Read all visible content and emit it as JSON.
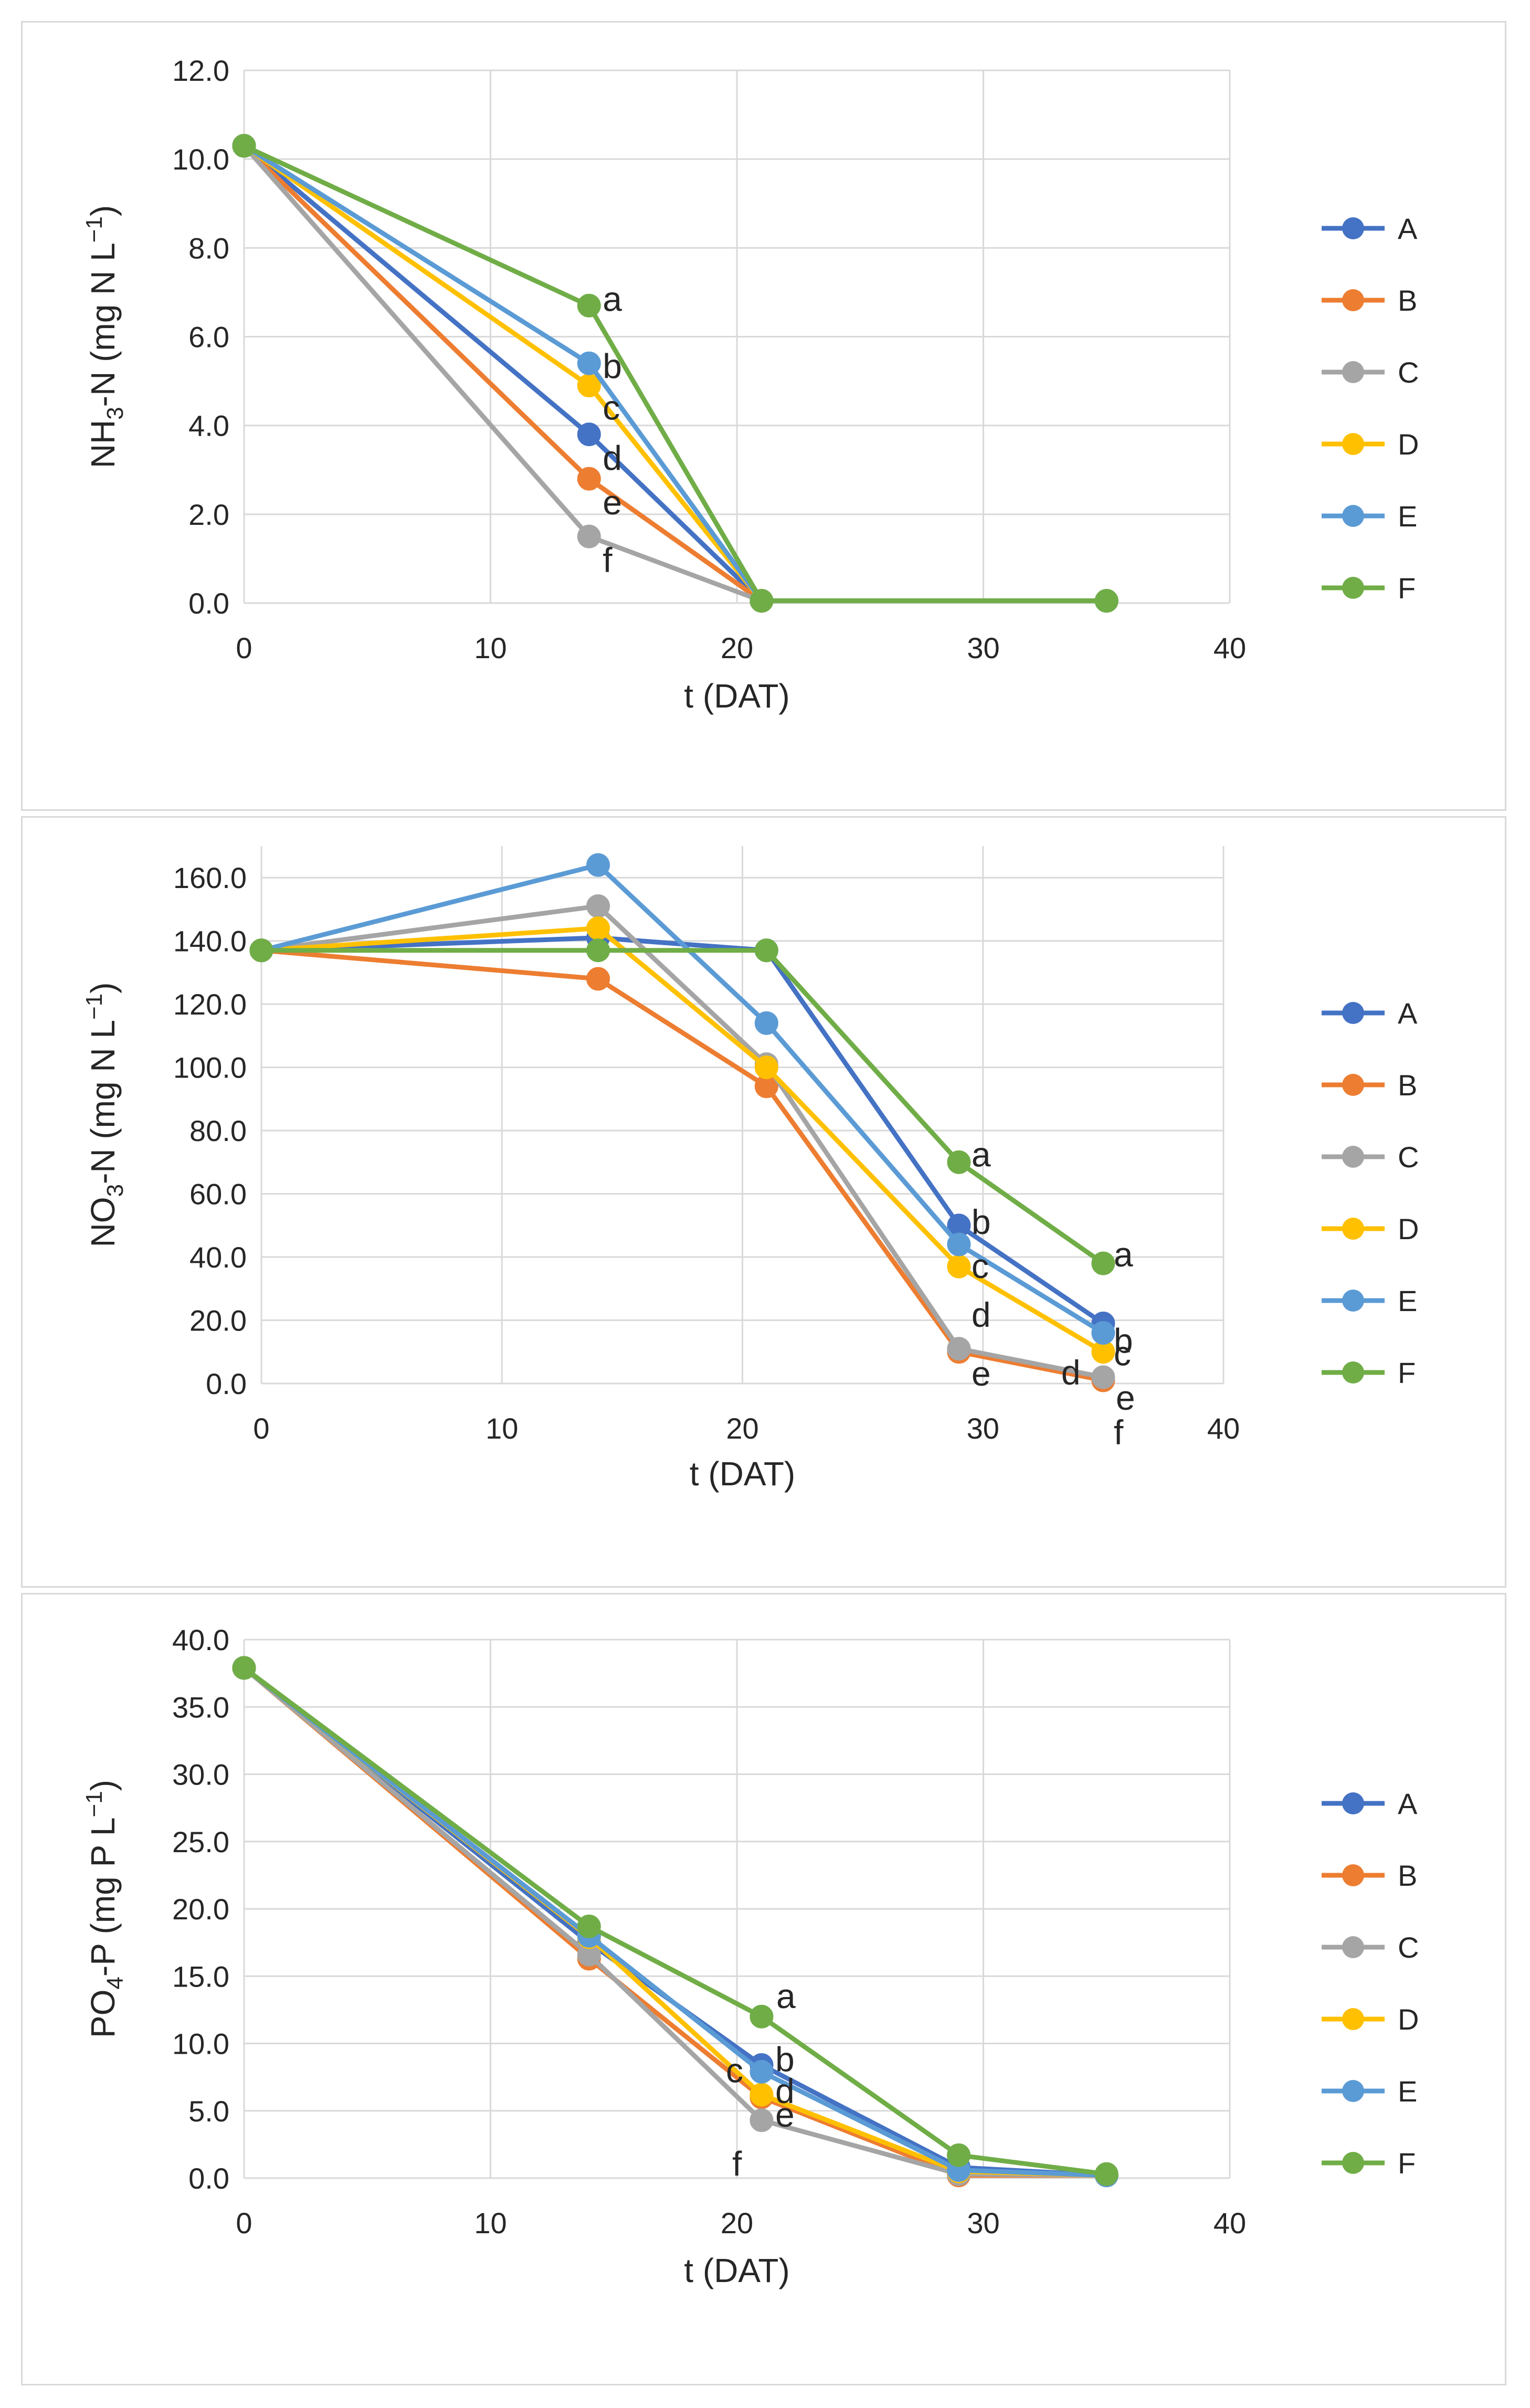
{
  "colors": {
    "A": "#4472c4",
    "B": "#ed7d31",
    "C": "#a5a5a5",
    "D": "#ffc000",
    "E": "#5b9bd5",
    "F": "#70ad47",
    "grid": "#d9d9d9",
    "text": "#262626"
  },
  "chart_data": [
    {
      "type": "line",
      "ylabel_main": "NH",
      "ylabel_sub": "3",
      "ylabel_rest": "-N (mg N L",
      "ylabel_sup": "−1",
      "ylabel_end": ")",
      "xlabel": "t (DAT)",
      "xlim": [
        0,
        40
      ],
      "ylim": [
        0,
        12
      ],
      "xticks": [
        0,
        10,
        20,
        30,
        40
      ],
      "xtick_labels": [
        "0",
        "10",
        "20",
        "30",
        "40"
      ],
      "yticks": [
        0,
        2,
        4,
        6,
        8,
        10,
        12
      ],
      "ytick_labels": [
        "0.0",
        "2.0",
        "4.0",
        "6.0",
        "8.0",
        "10.0",
        "12.0"
      ],
      "legend": [
        "A",
        "B",
        "C",
        "D",
        "E",
        "F"
      ],
      "series": [
        {
          "name": "A",
          "points": [
            [
              0,
              10.3
            ],
            [
              14,
              3.8
            ],
            [
              21,
              0.05
            ],
            [
              35,
              0.05
            ]
          ]
        },
        {
          "name": "B",
          "points": [
            [
              0,
              10.3
            ],
            [
              14,
              2.8
            ],
            [
              21,
              0.05
            ],
            [
              35,
              0.05
            ]
          ]
        },
        {
          "name": "C",
          "points": [
            [
              0,
              10.3
            ],
            [
              14,
              1.5
            ],
            [
              21,
              0.05
            ],
            [
              35,
              0.05
            ]
          ]
        },
        {
          "name": "D",
          "points": [
            [
              0,
              10.3
            ],
            [
              14,
              4.9
            ],
            [
              21,
              0.05
            ],
            [
              35,
              0.05
            ]
          ]
        },
        {
          "name": "E",
          "points": [
            [
              0,
              10.3
            ],
            [
              14,
              5.4
            ],
            [
              21,
              0.05
            ],
            [
              35,
              0.05
            ]
          ]
        },
        {
          "name": "F",
          "points": [
            [
              0,
              10.3
            ],
            [
              14,
              6.7
            ],
            [
              21,
              0.05
            ],
            [
              35,
              0.05
            ]
          ]
        }
      ],
      "annotations": [
        {
          "text": "a",
          "x": 14,
          "y": 6.7
        },
        {
          "text": "b",
          "x": 14,
          "y": 5.4
        },
        {
          "text": "c",
          "x": 14,
          "y": 4.9
        },
        {
          "text": "d",
          "x": 14,
          "y": 3.8
        },
        {
          "text": "e",
          "x": 14,
          "y": 2.8
        },
        {
          "text": "f",
          "x": 14,
          "y": 1.5
        }
      ]
    },
    {
      "type": "line",
      "ylabel_main": "NO",
      "ylabel_sub": "3",
      "ylabel_rest": "-N (mg N L",
      "ylabel_sup": "−1",
      "ylabel_end": ")",
      "xlabel": "t (DAT)",
      "xlim": [
        0,
        40
      ],
      "ylim": [
        0,
        170
      ],
      "xticks": [
        0,
        10,
        20,
        30,
        40
      ],
      "xtick_labels": [
        "0",
        "10",
        "20",
        "30",
        "40"
      ],
      "yticks": [
        0,
        20,
        40,
        60,
        80,
        100,
        120,
        140,
        160
      ],
      "ytick_labels": [
        "0.0",
        "20.0",
        "40.0",
        "60.0",
        "80.0",
        "100.0",
        "120.0",
        "140.0",
        "160.0"
      ],
      "legend": [
        "A",
        "B",
        "C",
        "D",
        "E",
        "F"
      ],
      "series": [
        {
          "name": "A",
          "points": [
            [
              0,
              137
            ],
            [
              14,
              141
            ],
            [
              21,
              137
            ],
            [
              29,
              50
            ],
            [
              35,
              19
            ]
          ]
        },
        {
          "name": "B",
          "points": [
            [
              0,
              137
            ],
            [
              14,
              128
            ],
            [
              21,
              94
            ],
            [
              29,
              10
            ],
            [
              35,
              1
            ]
          ]
        },
        {
          "name": "C",
          "points": [
            [
              0,
              137
            ],
            [
              14,
              151
            ],
            [
              21,
              101
            ],
            [
              29,
              11
            ],
            [
              35,
              2
            ]
          ]
        },
        {
          "name": "D",
          "points": [
            [
              0,
              137
            ],
            [
              14,
              144
            ],
            [
              21,
              100
            ],
            [
              29,
              37
            ],
            [
              35,
              10
            ]
          ]
        },
        {
          "name": "E",
          "points": [
            [
              0,
              137
            ],
            [
              14,
              164
            ],
            [
              21,
              114
            ],
            [
              29,
              44
            ],
            [
              35,
              16
            ]
          ]
        },
        {
          "name": "F",
          "points": [
            [
              0,
              137
            ],
            [
              14,
              137
            ],
            [
              21,
              137
            ],
            [
              29,
              70
            ],
            [
              35,
              38
            ]
          ]
        }
      ],
      "annotations": [
        {
          "text": "a",
          "x": 29,
          "y": 70
        },
        {
          "text": "b",
          "x": 29,
          "y": 50
        },
        {
          "text": "c",
          "x": 29,
          "y": 44
        },
        {
          "text": "d",
          "x": 29,
          "y": 37
        },
        {
          "text": "e",
          "x": 29,
          "y": 10
        },
        {
          "text": "a",
          "x": 35,
          "y": 38
        },
        {
          "text": "b",
          "x": 35,
          "y": 19
        },
        {
          "text": "c",
          "x": 35,
          "y": 16
        },
        {
          "text": "d",
          "x": 35,
          "y": 10
        },
        {
          "text": "e",
          "x": 35,
          "y": 2
        },
        {
          "text": "f",
          "x": 35,
          "y": 1
        }
      ]
    },
    {
      "type": "line",
      "ylabel_main": "PO",
      "ylabel_sub": "4",
      "ylabel_rest": "-P (mg P L",
      "ylabel_sup": "−1",
      "ylabel_end": ")",
      "xlabel": "t (DAT)",
      "xlim": [
        0,
        40
      ],
      "ylim": [
        0,
        40
      ],
      "xticks": [
        0,
        10,
        20,
        30,
        40
      ],
      "xtick_labels": [
        "0",
        "10",
        "20",
        "30",
        "40"
      ],
      "yticks": [
        0,
        5,
        10,
        15,
        20,
        25,
        30,
        35,
        40
      ],
      "ytick_labels": [
        "0.0",
        "5.0",
        "10.0",
        "15.0",
        "20.0",
        "25.0",
        "30.0",
        "35.0",
        "40.0"
      ],
      "legend": [
        "A",
        "B",
        "C",
        "D",
        "E",
        "F"
      ],
      "series": [
        {
          "name": "A",
          "points": [
            [
              0,
              37.9
            ],
            [
              14,
              17.5
            ],
            [
              21,
              8.4
            ],
            [
              29,
              0.8
            ],
            [
              35,
              0.2
            ]
          ]
        },
        {
          "name": "B",
          "points": [
            [
              0,
              37.9
            ],
            [
              14,
              16.3
            ],
            [
              21,
              6.0
            ],
            [
              29,
              0.2
            ],
            [
              35,
              0.2
            ]
          ]
        },
        {
          "name": "C",
          "points": [
            [
              0,
              37.9
            ],
            [
              14,
              16.6
            ],
            [
              21,
              4.3
            ],
            [
              29,
              0.3
            ],
            [
              35,
              0.2
            ]
          ]
        },
        {
          "name": "D",
          "points": [
            [
              0,
              37.9
            ],
            [
              14,
              17.9
            ],
            [
              21,
              6.2
            ],
            [
              29,
              0.5
            ],
            [
              35,
              0.2
            ]
          ]
        },
        {
          "name": "E",
          "points": [
            [
              0,
              37.9
            ],
            [
              14,
              18.0
            ],
            [
              21,
              7.9
            ],
            [
              29,
              0.6
            ],
            [
              35,
              0.2
            ]
          ]
        },
        {
          "name": "F",
          "points": [
            [
              0,
              37.9
            ],
            [
              14,
              18.7
            ],
            [
              21,
              12.0
            ],
            [
              29,
              1.7
            ],
            [
              35,
              0.3
            ]
          ]
        }
      ],
      "annotations": [
        {
          "text": "a",
          "x": 21,
          "y": 12.0
        },
        {
          "text": "b",
          "x": 21,
          "y": 8.4
        },
        {
          "text": "c",
          "x": 21,
          "y": 7.9
        },
        {
          "text": "d",
          "x": 21,
          "y": 6.9
        },
        {
          "text": "e",
          "x": 21,
          "y": 6.0
        },
        {
          "text": "f",
          "x": 21,
          "y": 4.3
        }
      ]
    }
  ]
}
